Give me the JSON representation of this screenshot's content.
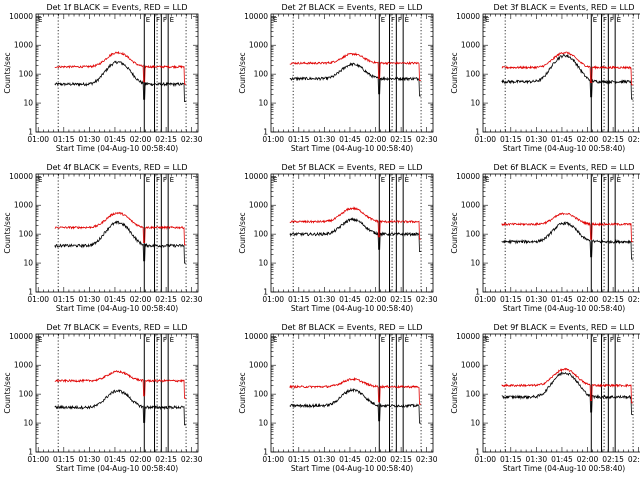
{
  "chart_data": [
    {
      "type": "line",
      "title": "Det 1f BLACK = Events, RED = LLD",
      "xlabel": "Start Time (04-Aug-10 00:58:40)",
      "ylabel": "Counts/sec",
      "series": [
        {
          "color": "#000000",
          "baseline": 45,
          "peak": 260
        },
        {
          "color": "#e00000",
          "baseline": 180,
          "peak": 560
        }
      ]
    },
    {
      "type": "line",
      "title": "Det 2f BLACK = Events, RED = LLD",
      "xlabel": "Start Time (04-Aug-10 00:58:40)",
      "ylabel": "Counts/sec",
      "series": [
        {
          "color": "#000000",
          "baseline": 70,
          "peak": 220
        },
        {
          "color": "#e00000",
          "baseline": 240,
          "peak": 500
        }
      ]
    },
    {
      "type": "line",
      "title": "Det 3f BLACK = Events, RED = LLD",
      "xlabel": "Start Time (04-Aug-10 00:58:40)",
      "ylabel": "Counts/sec",
      "series": [
        {
          "color": "#000000",
          "baseline": 55,
          "peak": 440
        },
        {
          "color": "#e00000",
          "baseline": 170,
          "peak": 560
        }
      ]
    },
    {
      "type": "line",
      "title": "Det 4f BLACK = Events, RED = LLD",
      "xlabel": "Start Time (04-Aug-10 00:58:40)",
      "ylabel": "Counts/sec",
      "series": [
        {
          "color": "#000000",
          "baseline": 40,
          "peak": 250
        },
        {
          "color": "#e00000",
          "baseline": 170,
          "peak": 540
        }
      ]
    },
    {
      "type": "line",
      "title": "Det 5f BLACK = Events, RED = LLD",
      "xlabel": "Start Time (04-Aug-10 00:58:40)",
      "ylabel": "Counts/sec",
      "series": [
        {
          "color": "#000000",
          "baseline": 100,
          "peak": 320
        },
        {
          "color": "#e00000",
          "baseline": 270,
          "peak": 780
        }
      ]
    },
    {
      "type": "line",
      "title": "Det 6f BLACK = Events, RED = LLD",
      "xlabel": "Start Time (04-Aug-10 00:58:40)",
      "ylabel": "Counts/sec",
      "series": [
        {
          "color": "#000000",
          "baseline": 55,
          "peak": 240
        },
        {
          "color": "#e00000",
          "baseline": 220,
          "peak": 520
        }
      ]
    },
    {
      "type": "line",
      "title": "Det 7f BLACK = Events, RED = LLD",
      "xlabel": "Start Time (04-Aug-10 00:58:40)",
      "ylabel": "Counts/sec",
      "series": [
        {
          "color": "#000000",
          "baseline": 35,
          "peak": 130
        },
        {
          "color": "#e00000",
          "baseline": 290,
          "peak": 600
        }
      ]
    },
    {
      "type": "line",
      "title": "Det 8f BLACK = Events, RED = LLD",
      "xlabel": "Start Time (04-Aug-10 00:58:40)",
      "ylabel": "Counts/sec",
      "series": [
        {
          "color": "#000000",
          "baseline": 40,
          "peak": 140
        },
        {
          "color": "#e00000",
          "baseline": 180,
          "peak": 330
        }
      ]
    },
    {
      "type": "line",
      "title": "Det 9f BLACK = Events, RED = LLD",
      "xlabel": "Start Time (04-Aug-10 00:58:40)",
      "ylabel": "Counts/sec",
      "series": [
        {
          "color": "#000000",
          "baseline": 80,
          "peak": 550
        },
        {
          "color": "#e00000",
          "baseline": 200,
          "peak": 720
        }
      ]
    }
  ],
  "axes": {
    "x_range_minutes": [
      0,
      95
    ],
    "x_ticks": [
      "01:00",
      "01:15",
      "01:30",
      "01:45",
      "02:00",
      "02:15",
      "02:30"
    ],
    "y_log": true,
    "y_ticks": [
      "1",
      "10",
      "100",
      "1000",
      "10000"
    ],
    "y_range": [
      1,
      12000
    ]
  },
  "markers": {
    "dotted_minutes": [
      13,
      71,
      88
    ],
    "event_minutes": [
      63.5,
      69.5,
      73.5,
      77.5
    ],
    "labels": [
      "E",
      "F",
      "F",
      "E"
    ]
  }
}
